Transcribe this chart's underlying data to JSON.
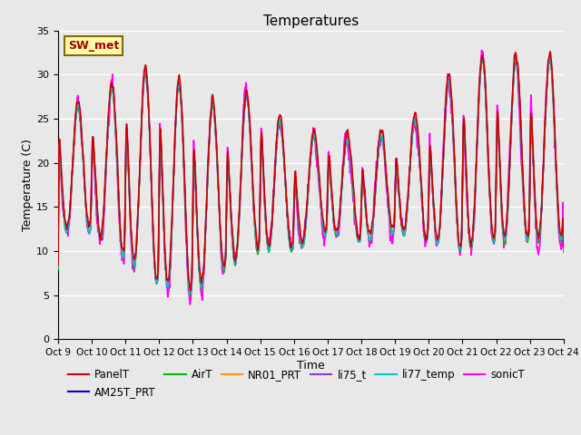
{
  "title": "Temperatures",
  "xlabel": "Time",
  "ylabel": "Temperature (C)",
  "ylim": [
    0,
    35
  ],
  "yticks": [
    0,
    5,
    10,
    15,
    20,
    25,
    30,
    35
  ],
  "xtick_labels": [
    "Oct 9",
    "Oct 10",
    "Oct 11",
    "Oct 12",
    "Oct 13",
    "Oct 14",
    "Oct 15",
    "Oct 16",
    "Oct 17",
    "Oct 18",
    "Oct 19",
    "Oct 20",
    "Oct 21",
    "Oct 22",
    "Oct 23",
    "Oct 24"
  ],
  "plot_bg_color": "#e8e8e8",
  "fig_bg_color": "#e8e8e8",
  "grid_color": "#ffffff",
  "series": {
    "PanelT": {
      "color": "#cc0000",
      "lw": 1.2,
      "zorder": 5
    },
    "AM25T_PRT": {
      "color": "#0000cc",
      "lw": 1.0,
      "zorder": 4
    },
    "AirT": {
      "color": "#00bb00",
      "lw": 1.0,
      "zorder": 4
    },
    "NR01_PRT": {
      "color": "#ff9900",
      "lw": 1.0,
      "zorder": 4
    },
    "li75_t": {
      "color": "#9933cc",
      "lw": 1.0,
      "zorder": 4
    },
    "li77_temp": {
      "color": "#00cccc",
      "lw": 1.0,
      "zorder": 4
    },
    "sonicT": {
      "color": "#ff00ff",
      "lw": 1.2,
      "zorder": 3
    }
  },
  "annotation_box": {
    "text": "SW_met",
    "facecolor": "#ffffaa",
    "edgecolor": "#886600",
    "textcolor": "#aa0000",
    "fontsize": 9,
    "fontweight": "bold"
  },
  "min_temps": [
    12,
    12,
    9,
    6,
    5,
    8,
    10,
    10,
    12,
    11,
    12,
    11,
    10,
    11,
    11
  ],
  "max_temps": [
    26,
    27,
    30,
    31,
    28,
    26,
    29,
    22,
    24,
    22,
    24,
    26,
    32,
    32,
    32
  ]
}
